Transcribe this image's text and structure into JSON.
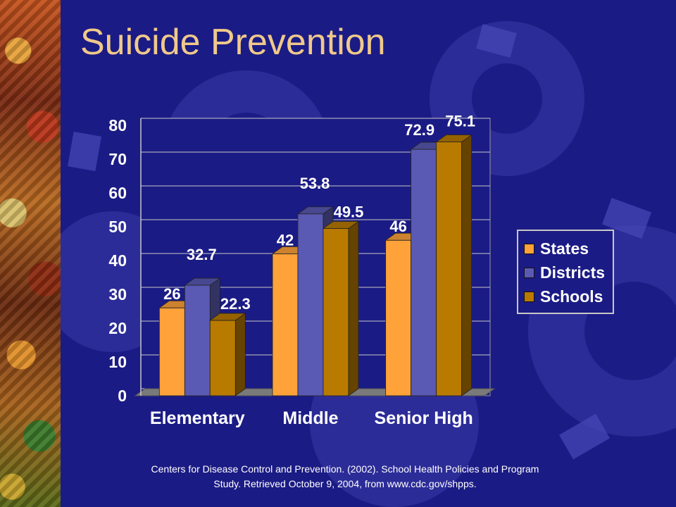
{
  "slide": {
    "title": "Suicide Prevention",
    "source_line1": "Centers for Disease Control and Prevention. (2002). School Health Policies and Program",
    "source_line2": "Study. Retrieved October 9, 2004, from www.cdc.gov/shpps."
  },
  "colors": {
    "background": "#1b1b85",
    "title": "#f0c98a",
    "states": "#ffa23a",
    "districts": "#5a5ab4",
    "schools": "#b97a00"
  },
  "chart_data": {
    "type": "bar",
    "title": "",
    "xlabel": "",
    "ylabel": "",
    "categories": [
      "Elementary",
      "Middle",
      "Senior High"
    ],
    "series": [
      {
        "name": "States",
        "values": [
          26,
          42,
          46
        ],
        "labels": [
          "26",
          "42",
          "46"
        ]
      },
      {
        "name": "Districts",
        "values": [
          32.7,
          53.8,
          72.9
        ],
        "labels": [
          "32.7",
          "53.8",
          "72.9"
        ]
      },
      {
        "name": "Schools",
        "values": [
          22.3,
          49.5,
          75.1
        ],
        "labels": [
          "22.3",
          "49.5",
          "75.1"
        ]
      }
    ],
    "ylim": [
      0,
      80
    ],
    "yticks": [
      "0",
      "10",
      "20",
      "30",
      "40",
      "50",
      "60",
      "70",
      "80"
    ],
    "grid": true,
    "three_d": true,
    "legend_position": "right"
  }
}
